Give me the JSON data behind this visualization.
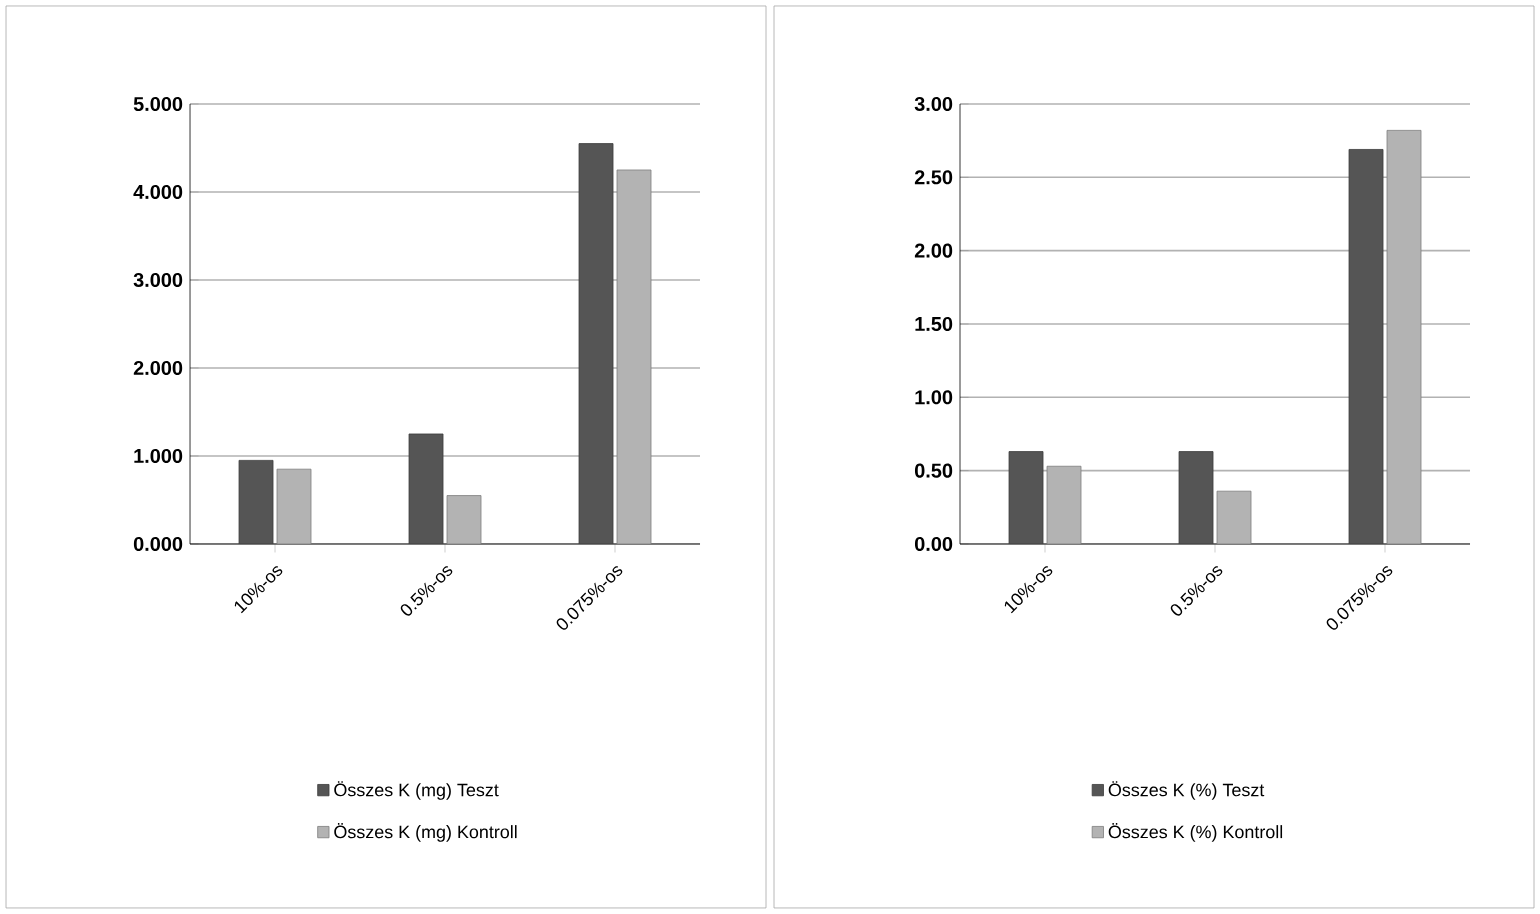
{
  "chart_data": [
    {
      "type": "bar",
      "categories": [
        "10%-os",
        "0.5%-os",
        "0.075%-os"
      ],
      "series": [
        {
          "name": "Összes K (mg) Teszt",
          "color": "#555555",
          "values": [
            0.95,
            1.25,
            4.55
          ]
        },
        {
          "name": "Összes K (mg) Kontroll",
          "color": "#b3b3b3",
          "values": [
            0.85,
            0.55,
            4.25
          ]
        }
      ],
      "ylim": [
        0,
        5
      ],
      "yticks": [
        {
          "value": 0,
          "label": "0.000"
        },
        {
          "value": 1,
          "label": "1.000"
        },
        {
          "value": 2,
          "label": "2.000"
        },
        {
          "value": 3,
          "label": "3.000"
        },
        {
          "value": 4,
          "label": "4.000"
        },
        {
          "value": 5,
          "label": "5.000"
        }
      ],
      "grid": "y",
      "legend": "bottom"
    },
    {
      "type": "bar",
      "categories": [
        "10%-os",
        "0.5%-os",
        "0.075%-os"
      ],
      "series": [
        {
          "name": "Összes K (%) Teszt",
          "color": "#555555",
          "values": [
            0.63,
            0.63,
            2.69
          ]
        },
        {
          "name": "Összes K (%) Kontroll",
          "color": "#b3b3b3",
          "values": [
            0.53,
            0.36,
            2.82
          ]
        }
      ],
      "ylim": [
        0,
        3
      ],
      "yticks": [
        {
          "value": 0,
          "label": "0.00"
        },
        {
          "value": 0.5,
          "label": "0.50"
        },
        {
          "value": 1,
          "label": "1.00"
        },
        {
          "value": 1.5,
          "label": "1.50"
        },
        {
          "value": 2,
          "label": "2.00"
        },
        {
          "value": 2.5,
          "label": "2.50"
        },
        {
          "value": 3,
          "label": "3.00"
        }
      ],
      "grid": "y",
      "legend": "bottom"
    }
  ]
}
